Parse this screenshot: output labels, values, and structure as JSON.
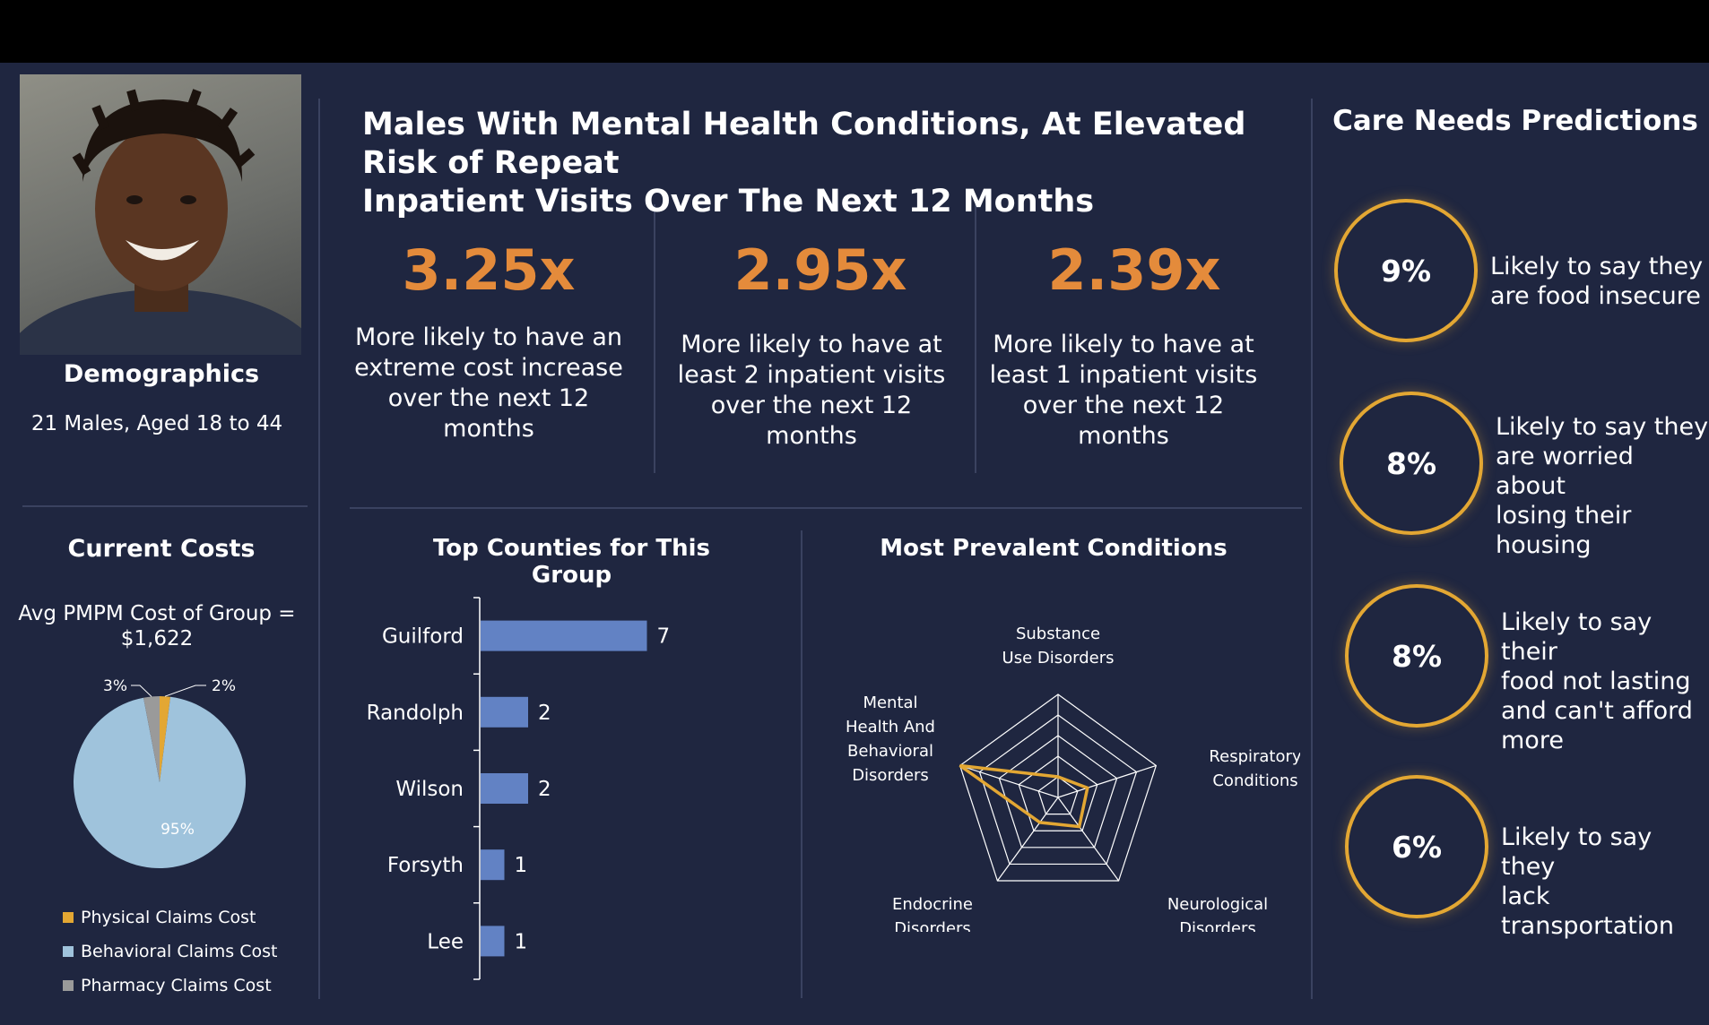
{
  "demographics": {
    "title": "Demographics",
    "text": "21 Males, Aged 18 to 44"
  },
  "header": {
    "title_line1": "Males With Mental Health Conditions, At Elevated Risk of Repeat",
    "title_line2": "Inpatient Visits Over The Next 12 Months"
  },
  "stats": [
    {
      "value": "3.25x",
      "line1": "More likely to have an",
      "line2": "extreme cost increase",
      "line3": "over the next 12",
      "line4": "months"
    },
    {
      "value": "2.95x",
      "line1": "More likely to have at",
      "line2": "least 2 inpatient visits",
      "line3": "over the next 12",
      "line4": "months"
    },
    {
      "value": "2.39x",
      "line1": "More likely to have at",
      "line2": "least 1 inpatient visits",
      "line3": "over the next 12",
      "line4": "months"
    }
  ],
  "costs": {
    "title": "Current Costs",
    "avg_line1": "Avg PMPM Cost of Group =",
    "avg_line2": "$1,622",
    "legend": [
      "Physical Claims Cost",
      "Behavioral Claims Cost",
      "Pharmacy Claims Cost"
    ],
    "colors": [
      "#e3a733",
      "#9fc3dc",
      "#9a9a9a"
    ]
  },
  "counties": {
    "title": "Top Counties for This Group"
  },
  "conditions": {
    "title": "Most Prevalent Conditions"
  },
  "care": {
    "title": "Care Needs Predictions",
    "items": [
      {
        "pct": "9%",
        "l1": "Likely to say they",
        "l2": "are food insecure",
        "l3": "",
        "l4": ""
      },
      {
        "pct": "8%",
        "l1": "Likely to say they",
        "l2": "are worried about",
        "l3": "losing their",
        "l4": "housing"
      },
      {
        "pct": "8%",
        "l1": "Likely to say their",
        "l2": "food not lasting",
        "l3": "and can't afford",
        "l4": "more"
      },
      {
        "pct": "6%",
        "l1": "Likely to say they",
        "l2": "lack transportation",
        "l3": "",
        "l4": ""
      }
    ]
  },
  "chart_data": [
    {
      "type": "pie",
      "categories": [
        "Physical Claims Cost",
        "Behavioral Claims Cost",
        "Pharmacy Claims Cost"
      ],
      "values": [
        2,
        95,
        3
      ],
      "labels": [
        "2%",
        "95%",
        "3%"
      ]
    },
    {
      "type": "bar",
      "orientation": "horizontal",
      "title": "Top Counties for This Group",
      "categories": [
        "Guilford",
        "Randolph",
        "Wilson",
        "Forsyth",
        "Lee"
      ],
      "values": [
        7,
        2,
        2,
        1,
        1
      ]
    },
    {
      "type": "radar",
      "title": "Most Prevalent Conditions",
      "axes": [
        [
          "Substance",
          "Use Disorders"
        ],
        [
          "Respiratory",
          "Conditions"
        ],
        [
          "Neurological",
          "Disorders"
        ],
        [
          "Endocrine",
          "Disorders"
        ],
        [
          "Mental",
          "Health And",
          "Behavioral",
          "Disorders"
        ]
      ],
      "values": [
        0.2,
        0.3,
        0.35,
        0.3,
        1.0
      ],
      "rmax": 1
    }
  ]
}
